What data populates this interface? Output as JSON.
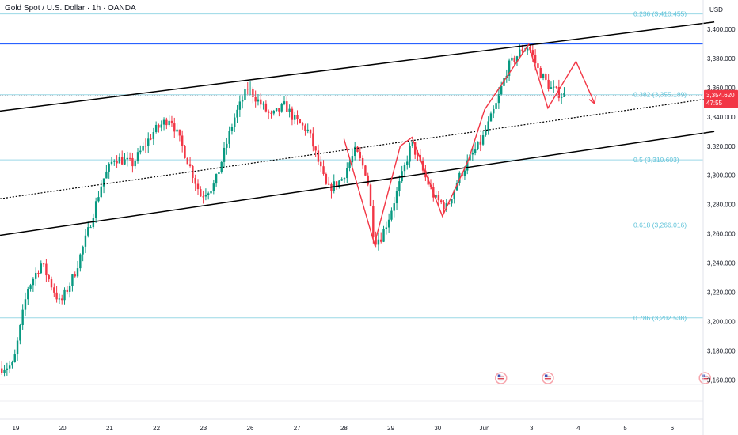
{
  "header": {
    "title": "Gold Spot / U.S. Dollar · 1h · OANDA"
  },
  "colors": {
    "up": "#089981",
    "down": "#f23645",
    "fib": "#9ad8e6",
    "fib_text": "#5fc3d9",
    "resistance": "#2962ff",
    "channel": "#000000",
    "projection": "#f23645",
    "price_tag": "#f23645"
  },
  "chart_data": {
    "type": "candlestick",
    "currency": "USD",
    "ylim": [
      3145,
      3420
    ],
    "y_ticks": [
      "3,160.000",
      "3,180.000",
      "3,200.000",
      "3,220.000",
      "3,240.000",
      "3,260.000",
      "3,280.000",
      "3,300.000",
      "3,320.000",
      "3,340.000",
      "3,360.000",
      "3,380.000",
      "3,400.000"
    ],
    "x_ticks": [
      "19",
      "20",
      "21",
      "22",
      "23",
      "26",
      "27",
      "28",
      "29",
      "30",
      "Jun",
      "3",
      "4",
      "5",
      "6"
    ],
    "current_price": {
      "value": 3354.62,
      "label": "3,354.620",
      "countdown": "47:55"
    },
    "fib_levels": [
      {
        "value": 3410.455,
        "label": "0.236 (3,410.455)"
      },
      {
        "value": 3355.189,
        "label": "0.382 (3,355.189)"
      },
      {
        "value": 3310.603,
        "label": "0.5 (3,310.603)"
      },
      {
        "value": 3266.016,
        "label": "0.618 (3,266.016)"
      },
      {
        "value": 3202.538,
        "label": "0.786 (3,202.538)"
      }
    ],
    "horizontal_line": 3390,
    "channel": {
      "upper": [
        [
          0,
          3344
        ],
        [
          14.9,
          3405
        ]
      ],
      "mid": [
        [
          0,
          3284
        ],
        [
          14.9,
          3353
        ]
      ],
      "lower": [
        [
          0,
          3259
        ],
        [
          14.9,
          3330
        ]
      ]
    },
    "projection_path": [
      [
        10.95,
        3388
      ],
      [
        11.35,
        3346
      ],
      [
        11.95,
        3378
      ],
      [
        12.35,
        3349
      ]
    ],
    "zigzag_path": [
      [
        7.0,
        3325
      ],
      [
        7.65,
        3253
      ],
      [
        8.2,
        3320
      ],
      [
        8.45,
        3326
      ],
      [
        9.1,
        3272
      ],
      [
        9.65,
        3310
      ],
      [
        10.0,
        3345
      ],
      [
        10.95,
        3390
      ]
    ],
    "events": [
      10.35,
      11.35,
      14.7
    ],
    "price_path": [
      [
        -0.3,
        3168
      ],
      [
        0.0,
        3170
      ],
      [
        0.3,
        3222
      ],
      [
        0.6,
        3240
      ],
      [
        1.0,
        3212
      ],
      [
        1.3,
        3232
      ],
      [
        1.6,
        3262
      ],
      [
        1.9,
        3296
      ],
      [
        2.15,
        3312
      ],
      [
        2.55,
        3308
      ],
      [
        3.0,
        3330
      ],
      [
        3.35,
        3340
      ],
      [
        3.7,
        3312
      ],
      [
        4.0,
        3286
      ],
      [
        4.3,
        3294
      ],
      [
        4.7,
        3338
      ],
      [
        5.0,
        3360
      ],
      [
        5.25,
        3350
      ],
      [
        5.5,
        3340
      ],
      [
        5.8,
        3348
      ],
      [
        6.0,
        3338
      ],
      [
        6.3,
        3330
      ],
      [
        6.7,
        3290
      ],
      [
        7.0,
        3297
      ],
      [
        7.3,
        3317
      ],
      [
        7.55,
        3300
      ],
      [
        7.7,
        3255
      ],
      [
        7.85,
        3258
      ],
      [
        8.0,
        3270
      ],
      [
        8.25,
        3295
      ],
      [
        8.5,
        3322
      ],
      [
        8.8,
        3298
      ],
      [
        9.0,
        3284
      ],
      [
        9.25,
        3278
      ],
      [
        9.5,
        3298
      ],
      [
        9.75,
        3312
      ],
      [
        10.0,
        3324
      ],
      [
        10.3,
        3348
      ],
      [
        10.55,
        3374
      ],
      [
        10.85,
        3386
      ],
      [
        11.0,
        3388
      ],
      [
        11.2,
        3372
      ],
      [
        11.45,
        3360
      ],
      [
        11.7,
        3355
      ]
    ]
  }
}
